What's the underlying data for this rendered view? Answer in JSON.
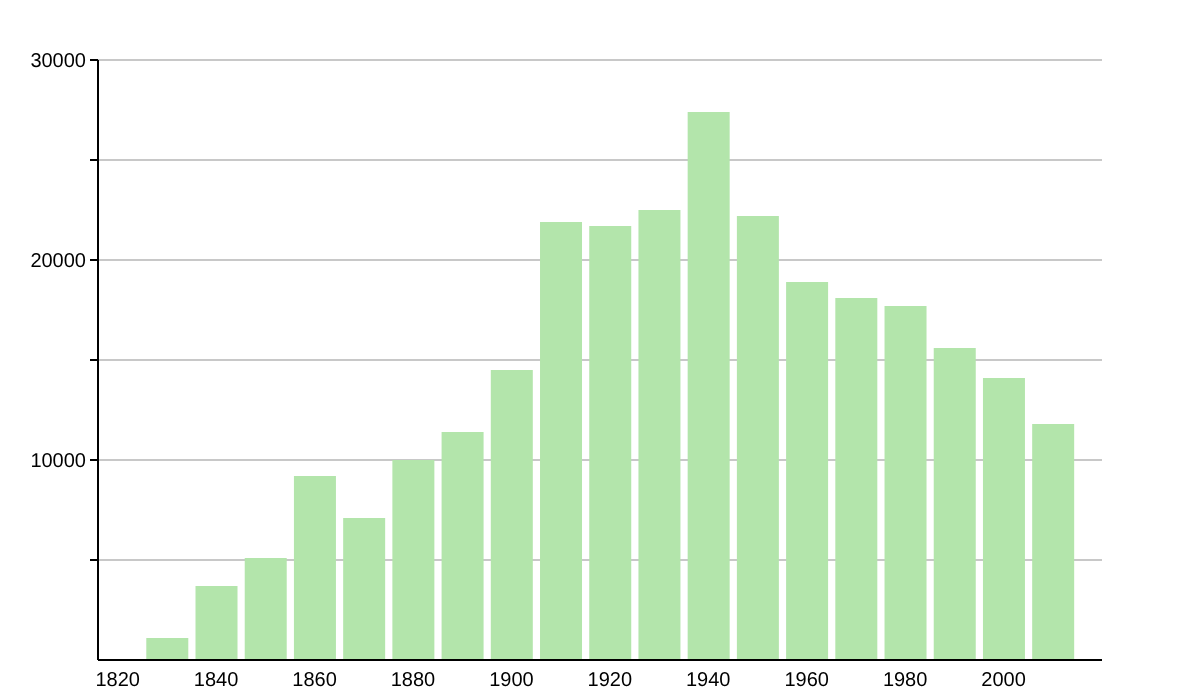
{
  "chart_data": {
    "type": "bar",
    "x": [
      1830,
      1840,
      1850,
      1860,
      1870,
      1880,
      1890,
      1900,
      1910,
      1920,
      1930,
      1940,
      1950,
      1960,
      1970,
      1980,
      1990,
      2000,
      2010
    ],
    "values": [
      1100,
      3700,
      5100,
      9200,
      7100,
      10000,
      11400,
      14500,
      21900,
      21700,
      22500,
      27400,
      22200,
      18900,
      18100,
      17700,
      15600,
      14100,
      11800
    ],
    "color": "#b3e5ab",
    "xlim": [
      1816,
      2020
    ],
    "xticks": [
      1820,
      1840,
      1860,
      1880,
      1900,
      1920,
      1940,
      1960,
      1980,
      2000
    ],
    "ylim": [
      0,
      30000
    ],
    "yticks": [
      {
        "value": 5000,
        "label": null
      },
      10000,
      {
        "value": 15000,
        "label": null
      },
      20000,
      {
        "value": 25000,
        "label": null
      },
      30000
    ],
    "grid": "y"
  }
}
